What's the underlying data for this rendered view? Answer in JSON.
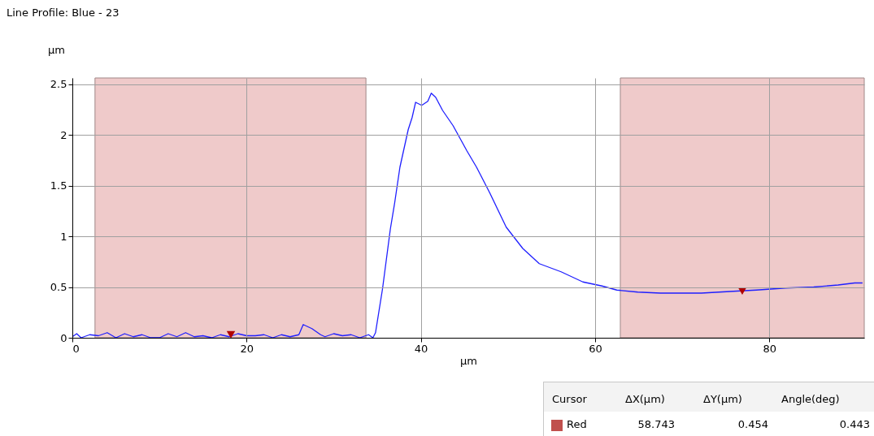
{
  "chart_data": {
    "type": "line",
    "title": "Line Profile: Blue  -  23",
    "xlabel": "µm",
    "ylabel": "µm",
    "xlim": [
      0,
      90.9
    ],
    "ylim": [
      0,
      2.56
    ],
    "xticks": [
      0,
      20,
      40,
      60,
      80
    ],
    "yticks": [
      0,
      0.5,
      1,
      1.5,
      2,
      2.5
    ],
    "grid": true,
    "series": [
      {
        "color": "#1f1fff",
        "marker": "none",
        "line_style": "solid",
        "x": [
          0,
          0.5,
          1,
          2,
          3,
          4,
          5,
          6,
          7,
          8,
          9,
          10,
          11,
          12,
          13,
          14,
          15,
          16,
          17,
          18,
          19,
          20,
          21,
          22,
          23,
          24,
          25,
          26,
          26.5,
          27.5,
          28.5,
          29,
          30,
          31,
          32,
          33,
          34,
          34.5,
          34.8,
          35.6,
          36.5,
          37.0,
          37.6,
          38.55,
          39.0,
          39.4,
          40.1,
          40.8,
          41.2,
          41.7,
          42.5,
          43.7,
          45.3,
          46.4,
          47.9,
          49.8,
          51.7,
          53.6,
          56.1,
          58.6,
          60.8,
          62.5,
          64.9,
          67.5,
          70.0,
          72.2,
          76.3,
          78.5,
          81.9,
          85.1,
          87.9,
          89.8,
          90.7
        ],
        "values": [
          0.01,
          0.04,
          0.0,
          0.03,
          0.02,
          0.05,
          0.0,
          0.04,
          0.01,
          0.03,
          0.0,
          0.0,
          0.04,
          0.01,
          0.05,
          0.01,
          0.02,
          0.0,
          0.03,
          0.01,
          0.04,
          0.02,
          0.02,
          0.03,
          0.0,
          0.03,
          0.01,
          0.03,
          0.13,
          0.09,
          0.03,
          0.01,
          0.04,
          0.02,
          0.03,
          0.0,
          0.03,
          0.0,
          0.05,
          0.48,
          1.07,
          1.33,
          1.68,
          2.05,
          2.17,
          2.32,
          2.29,
          2.33,
          2.41,
          2.37,
          2.24,
          2.09,
          1.84,
          1.68,
          1.43,
          1.09,
          0.88,
          0.73,
          0.65,
          0.55,
          0.51,
          0.47,
          0.45,
          0.44,
          0.44,
          0.44,
          0.46,
          0.47,
          0.49,
          0.5,
          0.52,
          0.54,
          0.54
        ]
      },
      {
        "type": "scatter",
        "color": "#b00000",
        "marker": "triangle",
        "x": [
          18.2,
          76.9
        ],
        "values": [
          0.03,
          0.46
        ]
      }
    ],
    "bands": [
      {
        "axis": "x",
        "from": 2.6,
        "to": 33.7,
        "color": "#efcaca"
      },
      {
        "axis": "x",
        "from": 62.9,
        "to": 90.9,
        "color": "#efcaca"
      }
    ],
    "annotations": [
      "Cursor",
      "ΔX(µm)",
      "ΔY(µm)",
      "Angle(deg)",
      "Red",
      "58.743",
      "0.454",
      "0.443"
    ]
  }
}
